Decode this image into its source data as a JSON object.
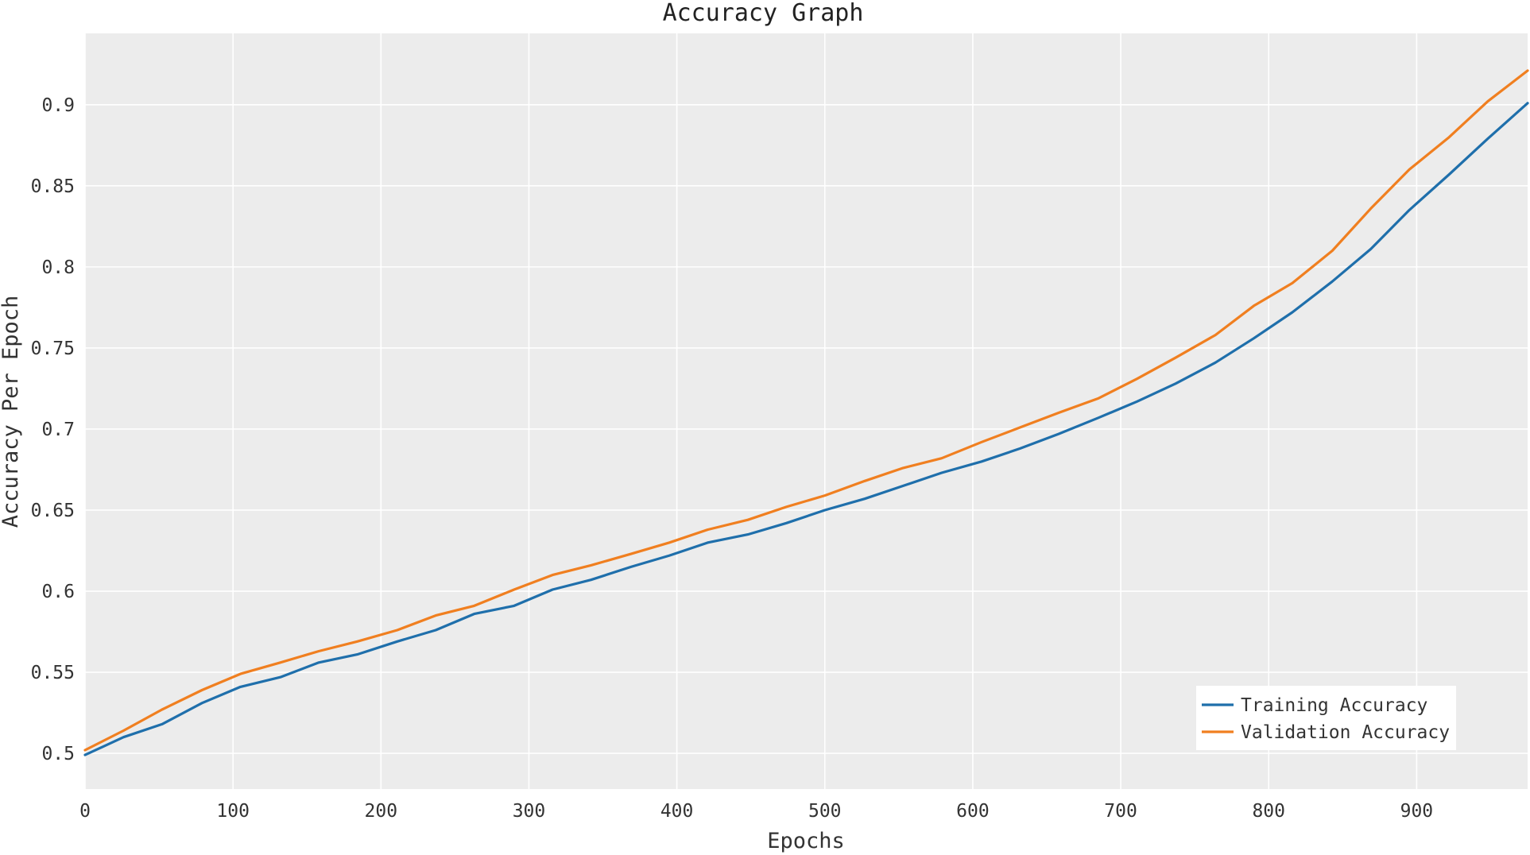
{
  "chart_data": {
    "type": "line",
    "title": "Accuracy Graph",
    "xlabel": "Epochs",
    "ylabel": "Accuracy Per Epoch",
    "xlim": [
      0,
      975
    ],
    "ylim": [
      0.478,
      0.944
    ],
    "xticks": [
      0,
      100,
      200,
      300,
      400,
      500,
      600,
      700,
      800,
      900
    ],
    "yticks": [
      0.5,
      0.55,
      0.6,
      0.65,
      0.7,
      0.75,
      0.8,
      0.85,
      0.9
    ],
    "ytick_labels": [
      "0.5",
      "0.55",
      "0.6",
      "0.65",
      "0.7",
      "0.75",
      "0.8",
      "0.85",
      "0.9"
    ],
    "grid": true,
    "legend_position": "bottom-right",
    "x": [
      0,
      26,
      52,
      79,
      105,
      132,
      158,
      184,
      211,
      237,
      263,
      290,
      316,
      342,
      369,
      395,
      421,
      448,
      474,
      500,
      527,
      553,
      579,
      606,
      632,
      658,
      685,
      711,
      737,
      764,
      790,
      816,
      843,
      869,
      895,
      922,
      948,
      975
    ],
    "series": [
      {
        "name": "Training Accuracy",
        "color": "#1f6fab",
        "values": [
          0.499,
          0.51,
          0.518,
          0.531,
          0.541,
          0.547,
          0.556,
          0.561,
          0.569,
          0.576,
          0.586,
          0.591,
          0.601,
          0.607,
          0.615,
          0.622,
          0.63,
          0.635,
          0.642,
          0.65,
          0.657,
          0.665,
          0.673,
          0.68,
          0.688,
          0.697,
          0.707,
          0.717,
          0.728,
          0.741,
          0.756,
          0.772,
          0.791,
          0.811,
          0.835,
          0.857,
          0.879,
          0.901
        ]
      },
      {
        "name": "Validation Accuracy",
        "color": "#f07f20",
        "values": [
          0.502,
          0.514,
          0.527,
          0.539,
          0.549,
          0.556,
          0.563,
          0.569,
          0.576,
          0.585,
          0.591,
          0.601,
          0.61,
          0.616,
          0.623,
          0.63,
          0.638,
          0.644,
          0.652,
          0.659,
          0.668,
          0.676,
          0.682,
          0.692,
          0.701,
          0.71,
          0.719,
          0.731,
          0.744,
          0.758,
          0.776,
          0.79,
          0.81,
          0.836,
          0.86,
          0.88,
          0.902,
          0.921
        ]
      }
    ]
  }
}
